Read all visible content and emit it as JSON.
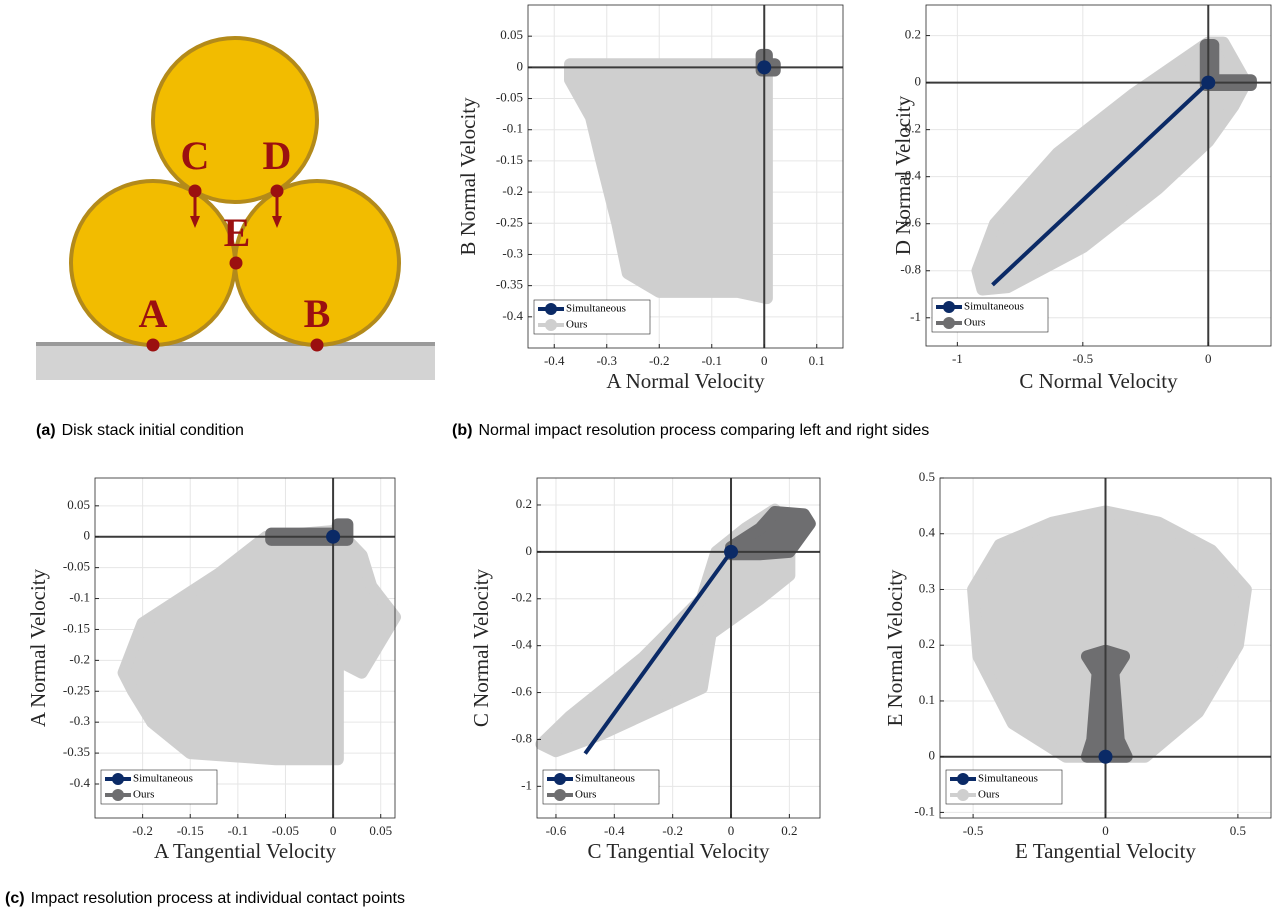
{
  "diagram": {
    "labels": {
      "A": "A",
      "B": "B",
      "C": "C",
      "D": "D",
      "E": "E"
    }
  },
  "captions": [
    {
      "tag": "(a)",
      "text": "Disk stack initial condition"
    },
    {
      "tag": "(b)",
      "text": "Normal impact resolution process comparing left and right sides"
    },
    {
      "tag": "(c)",
      "text": "Impact resolution process at individual contact points"
    }
  ],
  "chart_data": [
    {
      "type": "scatter",
      "xlabel": "A Normal Velocity",
      "ylabel": "B Normal Velocity",
      "xlim": [
        -0.45,
        0.15
      ],
      "ylim": [
        -0.45,
        0.1
      ],
      "xticks": [
        -0.4,
        -0.3,
        -0.2,
        -0.1,
        0,
        0.1
      ],
      "yticks": [
        -0.4,
        -0.35,
        -0.3,
        -0.25,
        -0.2,
        -0.15,
        -0.1,
        -0.05,
        0,
        0.05
      ],
      "grid": true,
      "legend": "lower left",
      "series": [
        {
          "name": "Simultaneous",
          "color": "#0b2a66",
          "x": [
            0
          ],
          "y": [
            0
          ]
        },
        {
          "name": "Ours",
          "color": "#cfcfcf",
          "x": [
            -0.37,
            0.005,
            0.005,
            -0.05,
            -0.1,
            -0.2,
            -0.26,
            -0.28,
            -0.31,
            -0.33,
            -0.37
          ],
          "y": [
            0.005,
            0.005,
            -0.37,
            -0.36,
            -0.36,
            -0.36,
            -0.33,
            -0.25,
            -0.15,
            -0.08,
            -0.02
          ]
        }
      ],
      "regions": [
        {
          "color": "#6e6e70",
          "x": [
            -0.005,
            0.005,
            0.005,
            0.02,
            0.02,
            -0.005
          ],
          "y": [
            0.02,
            0.02,
            0.005,
            0.005,
            -0.005,
            -0.005
          ]
        }
      ]
    },
    {
      "type": "scatter",
      "xlabel": "C Normal Velocity",
      "ylabel": "D Normal Velocity",
      "xlim": [
        -1.125,
        0.25
      ],
      "ylim": [
        -1.12,
        0.33
      ],
      "xticks": [
        -1,
        -0.5,
        0
      ],
      "yticks": [
        -1,
        -0.8,
        -0.6,
        -0.4,
        -0.2,
        0,
        0.2
      ],
      "grid": true,
      "legend": "lower left",
      "series": [
        {
          "name": "Simultaneous",
          "color": "#0b2a66",
          "x": [
            -0.86,
            0
          ],
          "y": [
            -0.86,
            0
          ]
        },
        {
          "name": "Ours",
          "color": "#6e6e70",
          "x": [
            -0.01,
            0.02,
            0.02,
            0.17,
            0.17,
            -0.01
          ],
          "y": [
            0.16,
            0.16,
            0.01,
            0.01,
            -0.01,
            -0.01
          ]
        }
      ],
      "regions": [
        {
          "color": "#cfcfcf",
          "x": [
            -0.9,
            -0.8,
            -0.5,
            -0.2,
            0,
            0.1,
            0.15,
            0.06,
            0,
            -0.3,
            -0.6,
            -0.85,
            -0.92
          ],
          "y": [
            -0.88,
            -0.87,
            -0.7,
            -0.45,
            -0.25,
            -0.1,
            0,
            0.17,
            0.17,
            -0.05,
            -0.3,
            -0.6,
            -0.8
          ]
        }
      ]
    },
    {
      "type": "scatter",
      "xlabel": "A Tangential Velocity",
      "ylabel": "A Normal Velocity",
      "xlim": [
        -0.25,
        0.065
      ],
      "ylim": [
        -0.455,
        0.095
      ],
      "xticks": [
        -0.2,
        -0.15,
        -0.1,
        -0.05,
        0,
        0.05
      ],
      "yticks": [
        -0.4,
        -0.35,
        -0.3,
        -0.25,
        -0.2,
        -0.15,
        -0.1,
        -0.05,
        0,
        0.05
      ],
      "grid": true,
      "legend": "lower left",
      "series": [
        {
          "name": "Simultaneous",
          "color": "#0b2a66",
          "x": [
            0
          ],
          "y": [
            0
          ]
        },
        {
          "name": "Ours",
          "color": "#6e6e70",
          "x": [
            -0.065,
            0.005,
            0.005,
            0.015,
            0.015,
            -0.065
          ],
          "y": [
            0.005,
            0.005,
            0.02,
            0.02,
            -0.005,
            -0.005
          ]
        }
      ],
      "regions": [
        {
          "color": "#cfcfcf",
          "x": [
            -0.22,
            -0.2,
            -0.12,
            -0.07,
            0.005,
            0.03,
            0.04,
            0.065,
            0.03,
            0.005,
            0.005,
            -0.06,
            -0.15,
            -0.19,
            -0.21
          ],
          "y": [
            -0.22,
            -0.14,
            -0.06,
            0,
            0.01,
            -0.03,
            -0.08,
            -0.13,
            -0.22,
            -0.2,
            -0.36,
            -0.36,
            -0.35,
            -0.3,
            -0.25
          ]
        }
      ]
    },
    {
      "type": "scatter",
      "xlabel": "C Tangential Velocity",
      "ylabel": "C Normal Velocity",
      "xlim": [
        -0.665,
        0.305
      ],
      "ylim": [
        -1.135,
        0.315
      ],
      "xticks": [
        -0.6,
        -0.4,
        -0.2,
        0,
        0.2
      ],
      "yticks": [
        -1,
        -0.8,
        -0.6,
        -0.4,
        -0.2,
        0,
        0.2
      ],
      "grid": true,
      "legend": "lower left",
      "series": [
        {
          "name": "Simultaneous",
          "color": "#0b2a66",
          "x": [
            -0.5,
            0
          ],
          "y": [
            -0.86,
            0
          ]
        },
        {
          "name": "Ours",
          "color": "#6e6e70",
          "x": [
            0,
            0,
            0.1,
            0.15,
            0.25,
            0.27,
            0.2,
            0.1
          ],
          "y": [
            -0.01,
            0.02,
            0.1,
            0.17,
            0.16,
            0.12,
            0,
            -0.01
          ]
        }
      ],
      "regions": [
        {
          "color": "#cfcfcf",
          "x": [
            -0.65,
            -0.6,
            -0.45,
            -0.1,
            -0.07,
            0.1,
            0.2,
            0.2,
            0.15,
            0.05,
            -0.05,
            -0.1,
            -0.3,
            -0.55
          ],
          "y": [
            -0.82,
            -0.85,
            -0.78,
            -0.58,
            -0.35,
            -0.2,
            -0.1,
            0.08,
            0.18,
            0.1,
            0,
            -0.2,
            -0.45,
            -0.7
          ]
        }
      ]
    },
    {
      "type": "scatter",
      "xlabel": "E Tangential Velocity",
      "ylabel": "E Normal Velocity",
      "xlim": [
        -0.625,
        0.625
      ],
      "ylim": [
        -0.11,
        0.5
      ],
      "xticks": [
        -0.5,
        0,
        0.5
      ],
      "yticks": [
        -0.1,
        0,
        0.1,
        0.2,
        0.3,
        0.4,
        0.5
      ],
      "grid": true,
      "legend": "lower left",
      "series": [
        {
          "name": "Simultaneous",
          "color": "#0b2a66",
          "x": [
            0
          ],
          "y": [
            0
          ]
        },
        {
          "name": "Ours",
          "color": "#cfcfcf",
          "x": [
            -0.5,
            -0.4,
            -0.2,
            0,
            0.2,
            0.4,
            0.53,
            0.5,
            0.35,
            0.15,
            -0.15,
            -0.35,
            -0.48
          ],
          "y": [
            0.3,
            0.38,
            0.42,
            0.44,
            0.42,
            0.37,
            0.3,
            0.2,
            0.08,
            0,
            0,
            0.06,
            0.18
          ]
        }
      ],
      "regions": [
        {
          "color": "#6e6e70",
          "x": [
            -0.07,
            0.08,
            0.05,
            0.03,
            0.07,
            0,
            -0.07,
            -0.03,
            -0.05
          ],
          "y": [
            0,
            0,
            0.03,
            0.15,
            0.18,
            0.19,
            0.18,
            0.15,
            0.03
          ]
        }
      ]
    }
  ]
}
